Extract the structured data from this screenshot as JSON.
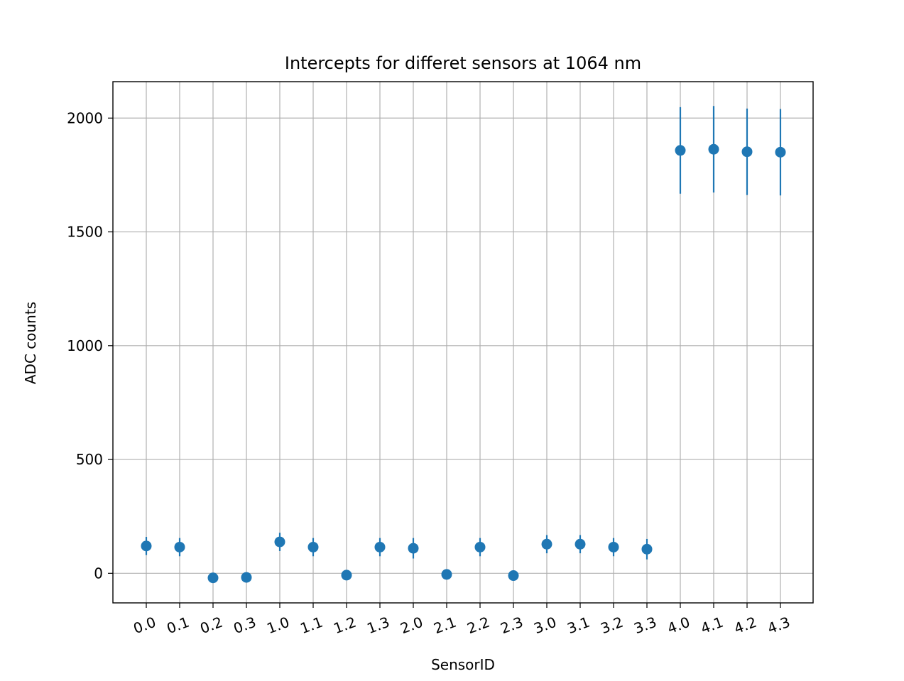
{
  "chart_data": {
    "type": "scatter",
    "title": "Intercepts for differet sensors at 1064 nm",
    "xlabel": "SensorID",
    "ylabel": "ADC counts",
    "categories": [
      "0.0",
      "0.1",
      "0.2",
      "0.3",
      "1.0",
      "1.1",
      "1.2",
      "1.3",
      "2.0",
      "2.1",
      "2.2",
      "2.3",
      "3.0",
      "3.1",
      "3.2",
      "3.3",
      "4.0",
      "4.1",
      "4.2",
      "4.3"
    ],
    "values": [
      120,
      115,
      -20,
      -18,
      138,
      115,
      -8,
      115,
      110,
      -5,
      115,
      -10,
      128,
      128,
      115,
      106,
      1858,
      1863,
      1852,
      1850
    ],
    "errors": [
      40,
      40,
      0,
      0,
      40,
      40,
      0,
      40,
      45,
      0,
      40,
      0,
      40,
      40,
      40,
      45,
      190,
      190,
      190,
      190
    ],
    "ylim": [
      -130,
      2160
    ],
    "yticks": [
      0,
      500,
      1000,
      1500,
      2000
    ],
    "grid": true,
    "marker_color": "#1f77b4",
    "xtick_rotation_deg": -20
  }
}
